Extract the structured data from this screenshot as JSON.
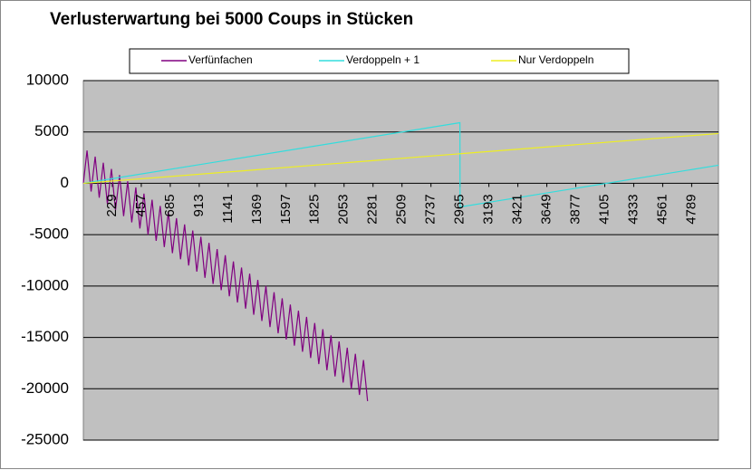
{
  "chart_data": {
    "type": "line",
    "title": "Verlusterwartung bei 5000 Coups in Stücken",
    "xlim": [
      1,
      5000
    ],
    "xticks": [
      229,
      457,
      685,
      913,
      1141,
      1369,
      1597,
      1825,
      2053,
      2281,
      2509,
      2737,
      2965,
      3193,
      3421,
      3649,
      3877,
      4105,
      4333,
      4561,
      4789
    ],
    "ylim": [
      -25000,
      10000
    ],
    "yticks": [
      -25000,
      -20000,
      -15000,
      -10000,
      -5000,
      0,
      5000,
      10000
    ],
    "grid": true,
    "series": [
      {
        "name": "Verfünfachen",
        "color": "#800080",
        "x": [
          1,
          30,
          62,
          94,
          126,
          158,
          190,
          222,
          254,
          286,
          318,
          350,
          382,
          414,
          446,
          478,
          510,
          542,
          574,
          606,
          638,
          670,
          702,
          734,
          766,
          798,
          830,
          862,
          894,
          926,
          958,
          990,
          1022,
          1054,
          1086,
          1118,
          1150,
          1182,
          1214,
          1246,
          1278,
          1310,
          1342,
          1374,
          1406,
          1438,
          1470,
          1502,
          1534,
          1566,
          1598,
          1630,
          1662,
          1694,
          1726,
          1758,
          1790,
          1822,
          1854,
          1886,
          1918,
          1950,
          1982,
          2014,
          2046,
          2078,
          2110,
          2142,
          2174,
          2206,
          2238
        ],
        "values": [
          0,
          3200,
          -800,
          2600,
          -1400,
          2000,
          -2000,
          1400,
          -2600,
          800,
          -3200,
          200,
          -3800,
          -400,
          -4400,
          -1000,
          -5000,
          -1600,
          -5600,
          -2200,
          -6200,
          -2800,
          -6800,
          -3400,
          -7400,
          -4000,
          -8000,
          -4600,
          -8600,
          -5200,
          -9200,
          -5800,
          -9800,
          -6400,
          -10400,
          -7000,
          -11000,
          -7600,
          -11600,
          -8200,
          -12200,
          -8800,
          -12800,
          -9400,
          -13400,
          -10000,
          -14000,
          -10600,
          -14600,
          -11200,
          -15200,
          -11800,
          -15800,
          -12400,
          -16400,
          -13000,
          -17000,
          -13600,
          -17600,
          -14200,
          -18200,
          -14800,
          -18800,
          -15400,
          -19400,
          -16000,
          -20000,
          -16600,
          -20600,
          -17200,
          -21200
        ]
      },
      {
        "name": "Verdoppeln + 1",
        "color": "#33dddd",
        "x": [
          1,
          2965,
          2966,
          5000
        ],
        "values": [
          0,
          5900,
          -2300,
          1760
        ]
      },
      {
        "name": "Nur Verdoppeln",
        "color": "#eeee22",
        "x": [
          1,
          5000
        ],
        "values": [
          0,
          4850
        ]
      }
    ]
  }
}
